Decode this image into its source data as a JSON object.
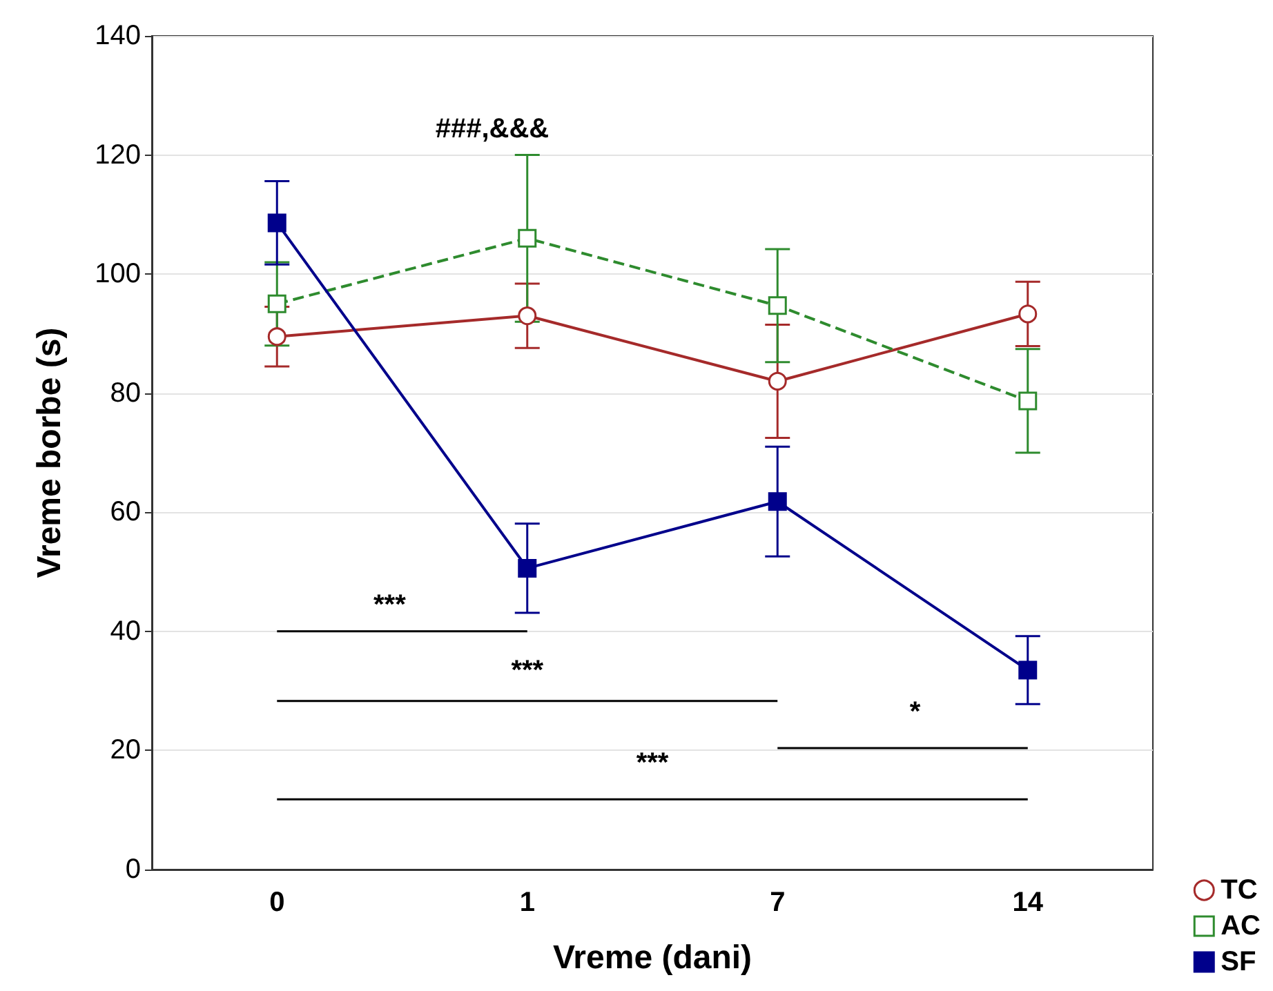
{
  "chart_data": {
    "type": "line",
    "xlabel": "Vreme (dani)",
    "ylabel": "Vreme borbe (s)",
    "categories": [
      "0",
      "1",
      "7",
      "14"
    ],
    "series": [
      {
        "name": "TC",
        "color": "#a52a2a",
        "marker": "circle",
        "line_style": "solid",
        "values": [
          89.5,
          93,
          82,
          93.3
        ],
        "errors": [
          5,
          5.4,
          9.5,
          5.4
        ]
      },
      {
        "name": "AC",
        "color": "#2e8b2e",
        "marker": "square",
        "line_style": "dashed",
        "values": [
          95,
          106,
          94.7,
          78.7
        ],
        "errors": [
          7,
          14,
          9.5,
          8.7
        ]
      },
      {
        "name": "SF",
        "color": "#00008b",
        "marker": "square",
        "line_style": "solid",
        "values": [
          108.6,
          50.6,
          61.8,
          33.5
        ],
        "errors": [
          7,
          7.5,
          9.2,
          5.7
        ]
      }
    ],
    "ylim": [
      0,
      140
    ],
    "yticks": [
      0,
      20,
      40,
      60,
      80,
      100,
      120,
      140
    ],
    "grid": "y",
    "legend": "bottom right",
    "annotations": [
      "###,&&&",
      "***",
      "***",
      "*",
      "***"
    ]
  }
}
